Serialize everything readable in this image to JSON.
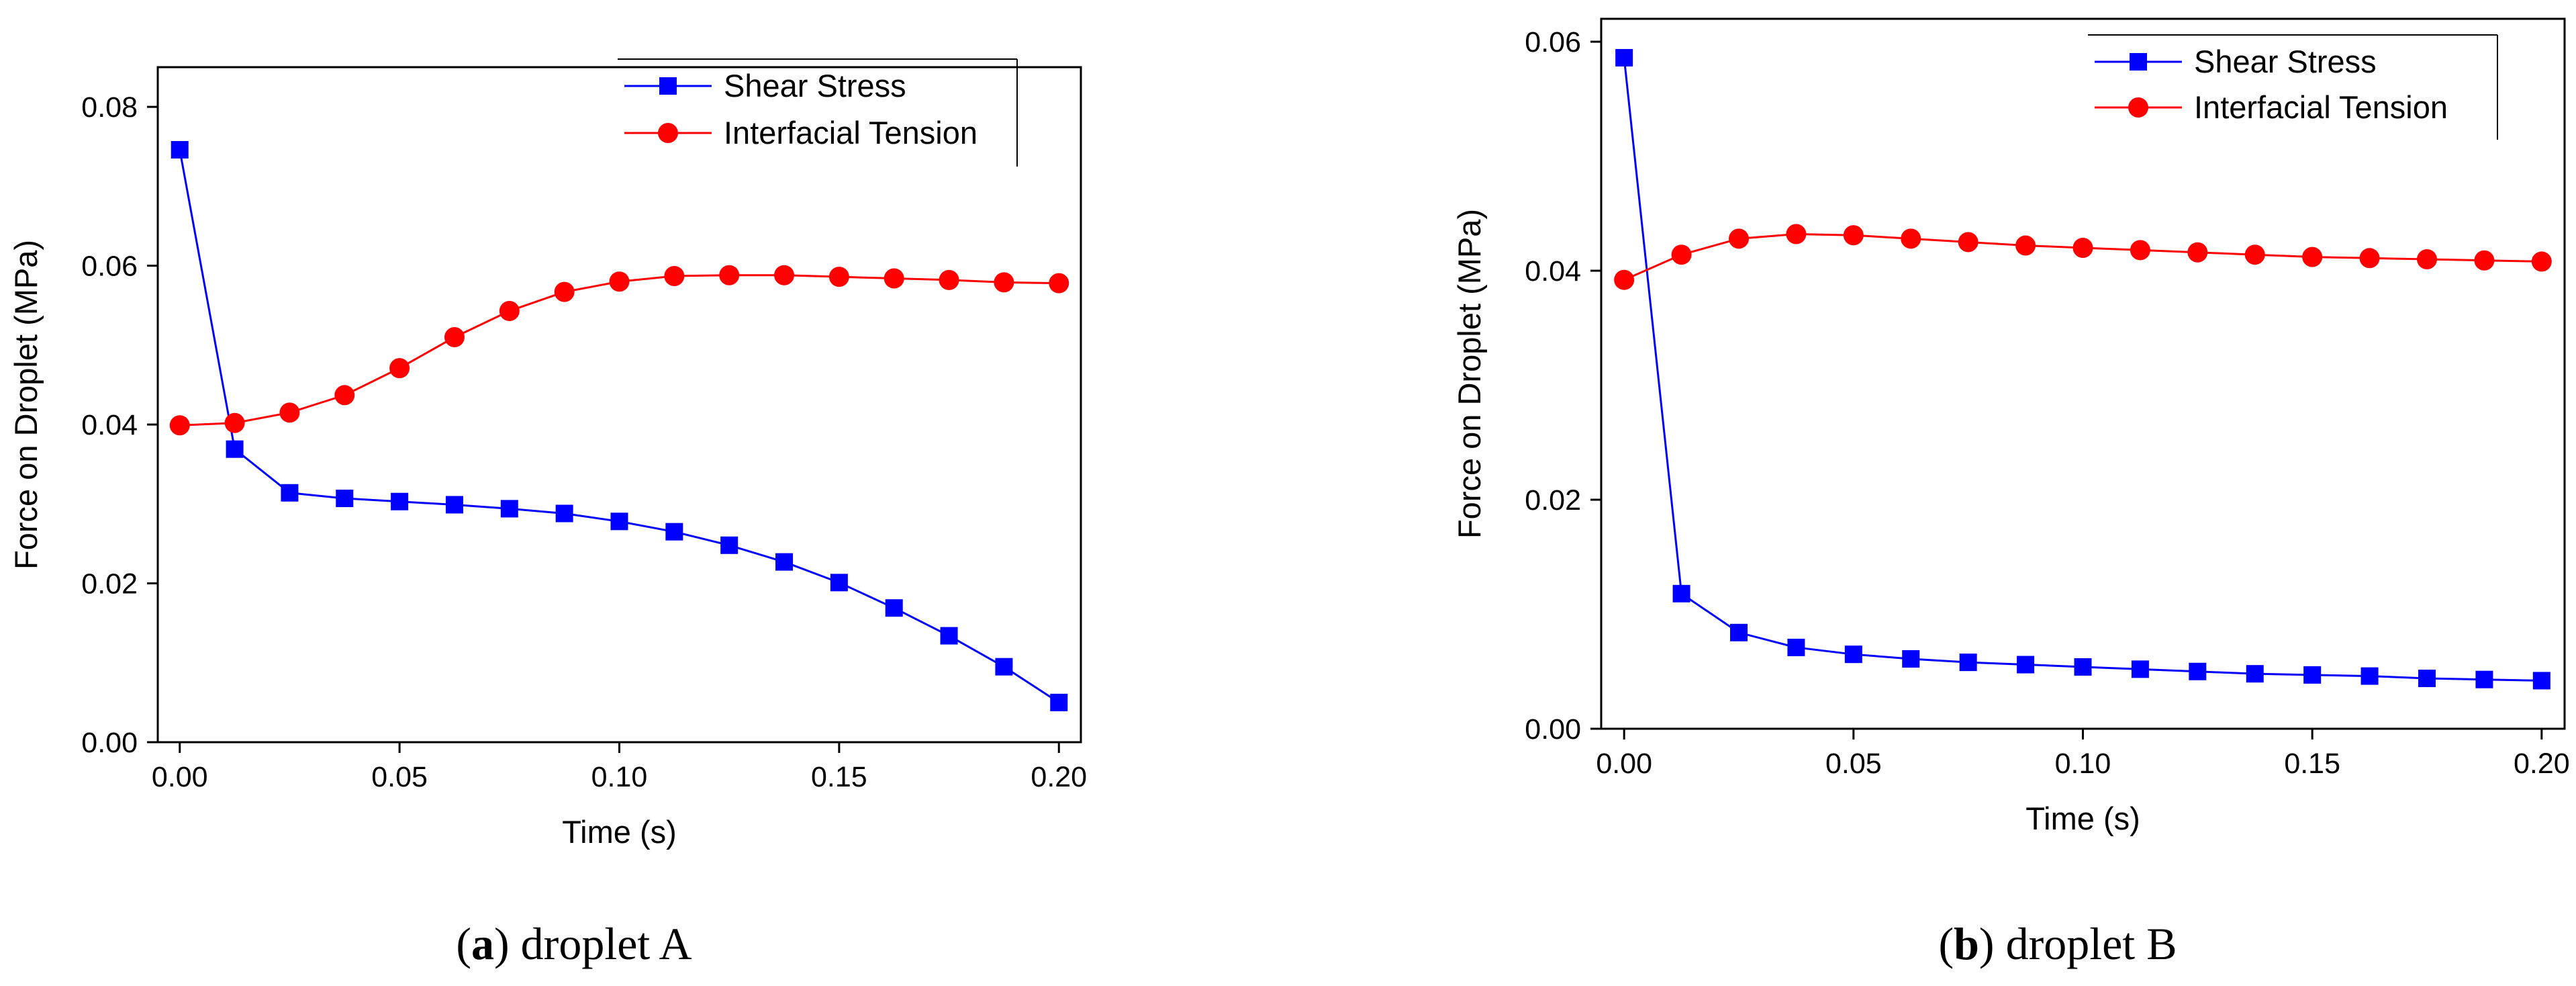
{
  "chart_data": [
    {
      "type": "line",
      "caption": {
        "letter": "a",
        "text": "droplet A"
      },
      "xlabel": "Time (s)",
      "ylabel": "Force on Droplet (MPa)",
      "xlim": [
        -0.005,
        0.205
      ],
      "ylim": [
        0.0,
        0.085
      ],
      "xticks": [
        0.0,
        0.05,
        0.1,
        0.15,
        0.2
      ],
      "xtick_labels": [
        "0.00",
        "0.05",
        "0.10",
        "0.15",
        "0.20"
      ],
      "yticks": [
        0.0,
        0.02,
        0.04,
        0.06,
        0.08
      ],
      "ytick_labels": [
        "0.00",
        "0.02",
        "0.04",
        "0.06",
        "0.08"
      ],
      "legend_position": "top-right",
      "x": [
        0.0,
        0.0125,
        0.025,
        0.0375,
        0.05,
        0.0625,
        0.075,
        0.0875,
        0.1,
        0.1125,
        0.125,
        0.1375,
        0.15,
        0.1625,
        0.175,
        0.1875,
        0.2
      ],
      "series": [
        {
          "name": "Shear Stress",
          "color": "#0000ff",
          "marker": "square",
          "values": [
            0.0746,
            0.0369,
            0.0314,
            0.0307,
            0.0303,
            0.0299,
            0.0294,
            0.0288,
            0.0278,
            0.0265,
            0.0248,
            0.0227,
            0.0201,
            0.0169,
            0.0134,
            0.0095,
            0.005
          ]
        },
        {
          "name": "Interfacial Tension",
          "color": "#ff0000",
          "marker": "circle",
          "values": [
            0.0399,
            0.0402,
            0.0415,
            0.0437,
            0.0471,
            0.051,
            0.0543,
            0.0567,
            0.058,
            0.0587,
            0.0588,
            0.0588,
            0.0586,
            0.0584,
            0.0582,
            0.0579,
            0.0578
          ]
        }
      ]
    },
    {
      "type": "line",
      "caption": {
        "letter": "b",
        "text": "droplet B"
      },
      "xlabel": "Time (s)",
      "ylabel": "Force on Droplet (MPa)",
      "xlim": [
        -0.005,
        0.205
      ],
      "ylim": [
        0.0,
        0.062
      ],
      "xticks": [
        0.0,
        0.05,
        0.1,
        0.15,
        0.2
      ],
      "xtick_labels": [
        "0.00",
        "0.05",
        "0.10",
        "0.15",
        "0.20"
      ],
      "yticks": [
        0.0,
        0.02,
        0.04,
        0.06
      ],
      "ytick_labels": [
        "0.00",
        "0.02",
        "0.04",
        "0.06"
      ],
      "legend_position": "top-right",
      "x": [
        0.0,
        0.0125,
        0.025,
        0.0375,
        0.05,
        0.0625,
        0.075,
        0.0875,
        0.1,
        0.1125,
        0.125,
        0.1375,
        0.15,
        0.1625,
        0.175,
        0.1875,
        0.2
      ],
      "series": [
        {
          "name": "Shear Stress",
          "color": "#0000ff",
          "marker": "square",
          "values": [
            0.0586,
            0.0118,
            0.0084,
            0.0071,
            0.0065,
            0.0061,
            0.0058,
            0.0056,
            0.0054,
            0.0052,
            0.005,
            0.0048,
            0.0047,
            0.0046,
            0.0044,
            0.0043,
            0.0042
          ]
        },
        {
          "name": "Interfacial Tension",
          "color": "#ff0000",
          "marker": "circle",
          "values": [
            0.0392,
            0.0414,
            0.0428,
            0.0432,
            0.0431,
            0.0428,
            0.0425,
            0.0422,
            0.042,
            0.0418,
            0.0416,
            0.0414,
            0.0412,
            0.0411,
            0.041,
            0.0409,
            0.0408
          ]
        }
      ]
    }
  ]
}
